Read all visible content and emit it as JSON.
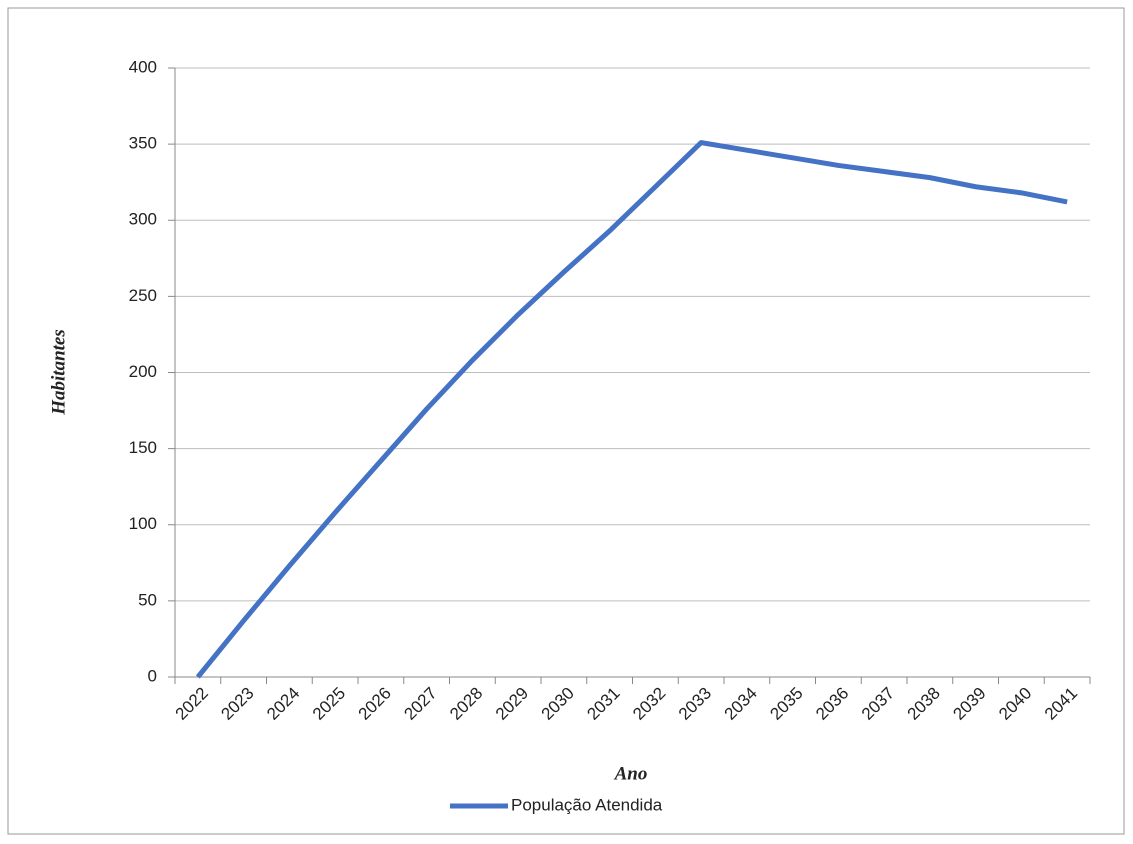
{
  "chart_data": {
    "type": "line",
    "x_label": "Ano",
    "y_label": "Habitantes",
    "categories": [
      "2022",
      "2023",
      "2024",
      "2025",
      "2026",
      "2027",
      "2028",
      "2029",
      "2030",
      "2031",
      "2032",
      "2033",
      "2034",
      "2035",
      "2036",
      "2037",
      "2038",
      "2039",
      "2040",
      "2041"
    ],
    "series": [
      {
        "name": "População Atendida",
        "color": "#4472c4",
        "values": [
          0,
          37,
          73,
          108,
          142,
          176,
          208,
          238,
          266,
          293,
          322,
          351,
          346,
          341,
          336,
          332,
          328,
          322,
          318,
          312
        ]
      }
    ],
    "ylim": [
      0,
      400
    ],
    "yticks": [
      0,
      50,
      100,
      150,
      200,
      250,
      300,
      350,
      400
    ],
    "grid": true,
    "legend": "bottom"
  }
}
